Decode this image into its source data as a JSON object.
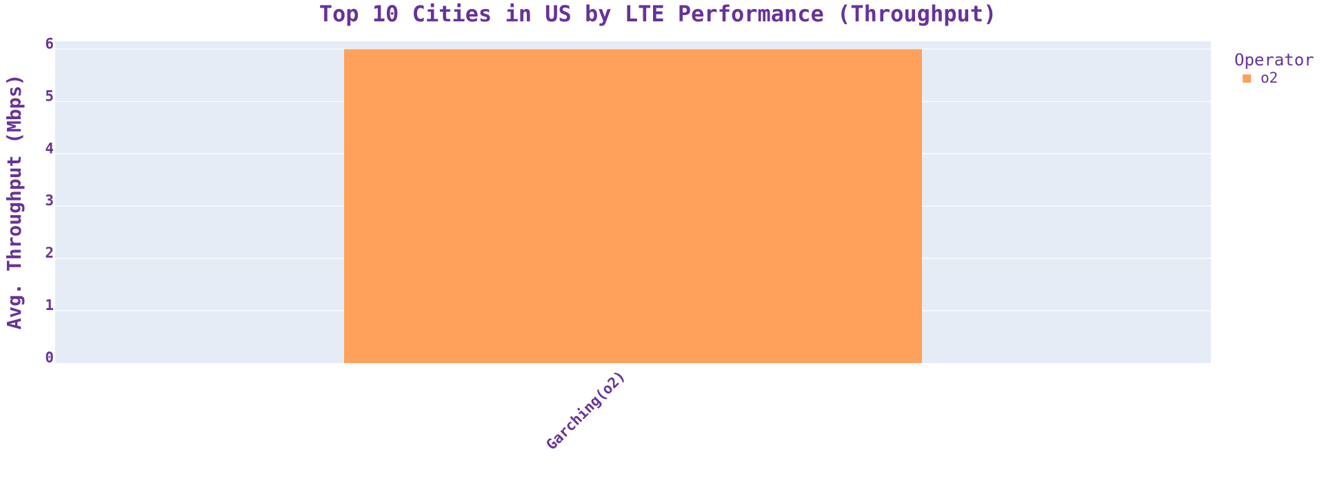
{
  "colors": {
    "text": "#663399",
    "plot_bg": "#e5ecf6",
    "grid": "#ffffff",
    "bar": "#ffa15a"
  },
  "chart_data": {
    "type": "bar",
    "title": "Top 10 Cities in US by LTE Performance (Throughput)",
    "xlabel": "",
    "ylabel": "Avg. Throughput (Mbps)",
    "categories": [
      "Garching(o2)"
    ],
    "series": [
      {
        "name": "o2",
        "values": [
          6.0
        ],
        "color": "#ffa15a"
      }
    ],
    "ylim": [
      0,
      6.15
    ],
    "yticks": [
      0,
      1,
      2,
      3,
      4,
      5,
      6
    ],
    "grid": true,
    "legend": {
      "title": "Operator",
      "placement": "top-right"
    }
  }
}
